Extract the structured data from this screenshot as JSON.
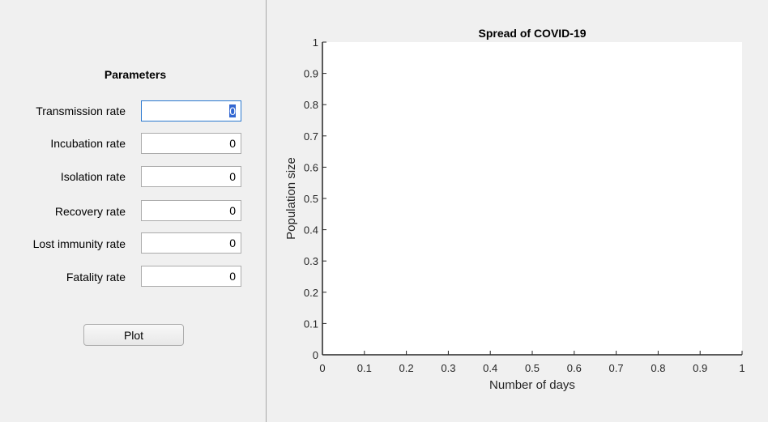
{
  "parameters_panel": {
    "title": "Parameters",
    "fields": [
      {
        "label": "Transmission rate",
        "value": "0"
      },
      {
        "label": "Incubation rate",
        "value": "0"
      },
      {
        "label": "Isolation rate",
        "value": "0"
      },
      {
        "label": "Recovery rate",
        "value": "0"
      },
      {
        "label": "Lost immunity rate",
        "value": "0"
      },
      {
        "label": "Fatality rate",
        "value": "0"
      }
    ],
    "focused_field_index": 0,
    "plot_button_label": "Plot"
  },
  "chart_data": {
    "type": "line",
    "title": "Spread of COVID-19",
    "xlabel": "Number of days",
    "ylabel": "Population size",
    "xlim": [
      0,
      1
    ],
    "ylim": [
      0,
      1
    ],
    "x_ticks": [
      "0",
      "0.1",
      "0.2",
      "0.3",
      "0.4",
      "0.5",
      "0.6",
      "0.7",
      "0.8",
      "0.9",
      "1"
    ],
    "y_ticks": [
      "0",
      "0.1",
      "0.2",
      "0.3",
      "0.4",
      "0.5",
      "0.6",
      "0.7",
      "0.8",
      "0.9",
      "1"
    ],
    "grid": false,
    "series": []
  },
  "colors": {
    "axes_background": "#ffffff",
    "figure_background": "#f0f0f0",
    "axis_color": "#262626",
    "focus_border": "#2b79d0"
  }
}
